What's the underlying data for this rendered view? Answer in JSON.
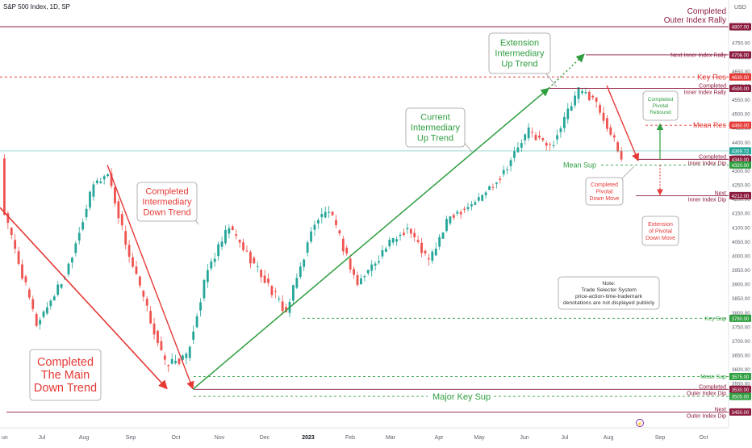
{
  "header": {
    "symbol_title": "S&P 500 Index, 1D, SP",
    "currency": "USD"
  },
  "colors": {
    "up": "#26a69a",
    "down": "#ef5350",
    "red": "#e53935",
    "green": "#2e9e3f",
    "maroon": "#8b1a3c",
    "gray_line": "#9e9e9e",
    "teal_price": "#26a69a"
  },
  "chart_data": {
    "type": "candlestick",
    "title": "S&P 500 Index, 1D, SP",
    "ylim": [
      3400,
      4850
    ],
    "y_ticks": [
      3450,
      3500,
      3550,
      3600,
      3650,
      3700,
      3750,
      3800,
      3850,
      3900,
      3950,
      4000,
      4050,
      4100,
      4150,
      4200,
      4250,
      4300,
      4350,
      4400,
      4450,
      4500,
      4550,
      4600,
      4650,
      4700,
      4750,
      4800
    ],
    "x_labels": [
      "un",
      "Jul",
      "Aug",
      "Sep",
      "Oct",
      "Nov",
      "Dec",
      "2023",
      "Feb",
      "Mar",
      "Apr",
      "May",
      "Jun",
      "Jul",
      "Aug",
      "Sep",
      "Oct"
    ],
    "x_label_bold": "2023",
    "trend_path": [
      [
        1,
        4150
      ],
      [
        10,
        3760
      ],
      [
        18,
        3930
      ],
      [
        26,
        4250
      ],
      [
        30,
        4290
      ],
      [
        36,
        4000
      ],
      [
        46,
        3620
      ],
      [
        52,
        3640
      ],
      [
        58,
        3950
      ],
      [
        64,
        4100
      ],
      [
        70,
        3990
      ],
      [
        80,
        3800
      ],
      [
        88,
        4120
      ],
      [
        92,
        4160
      ],
      [
        100,
        3900
      ],
      [
        108,
        4030
      ],
      [
        114,
        4100
      ],
      [
        120,
        3980
      ],
      [
        126,
        4140
      ],
      [
        134,
        4200
      ],
      [
        140,
        4280
      ],
      [
        148,
        4440
      ],
      [
        154,
        4380
      ],
      [
        162,
        4580
      ],
      [
        166,
        4560
      ],
      [
        170,
        4460
      ],
      [
        174,
        4340
      ]
    ],
    "levels": [
      {
        "price": 4807,
        "label_box": "4807.00",
        "note": "Completed\nOuter Index Rally",
        "color": "#8b1a3c",
        "style": "solid"
      },
      {
        "price": 4708,
        "label_box": "4708.00",
        "note": "Next Inner Index Rally",
        "color": "#8b1a3c",
        "style": "solid"
      },
      {
        "price": 4630,
        "label_box": "4630.00",
        "note": "Key Res",
        "color": "#e53935",
        "style": "dash"
      },
      {
        "price": 4590,
        "label_box": "4590.00",
        "note": "Completed\nInner Index Rally",
        "color": "#8b1a3c",
        "style": "solid"
      },
      {
        "price": 4460,
        "label_box": "4460.00",
        "note": "Mean Res",
        "color": "#e53935",
        "style": "dash"
      },
      {
        "price": 4369.72,
        "label_box": "4369.72",
        "note": "",
        "color": "#26a69a",
        "style": "price"
      },
      {
        "price": 4340,
        "label_box": "4340.00",
        "note": "Completed\nInner Index Dip",
        "color": "#8b1a3c",
        "style": "solid"
      },
      {
        "price": 4320,
        "label_box": "4320.00",
        "note": "Mean Sup",
        "color": "#2e9e3f",
        "style": "dash"
      },
      {
        "price": 4212,
        "label_box": "4212.00",
        "note": "Next\nInner Index Dip",
        "color": "#8b1a3c",
        "style": "solid"
      },
      {
        "price": 3780,
        "label_box": "3780.00",
        "note": "Key Sup",
        "color": "#2e9e3f",
        "style": "dash"
      },
      {
        "price": 3575,
        "label_box": "3575.00",
        "note": "Mean Sup",
        "color": "#2e9e3f",
        "style": "dash"
      },
      {
        "price": 3530,
        "label_box": "3530.00",
        "note": "Completed\nOuter Index Dip",
        "color": "#8b1a3c",
        "style": "solid"
      },
      {
        "price": 3505,
        "label_box": "3505.00",
        "note": "Major Key Sup",
        "color": "#2e9e3f",
        "style": "dash"
      },
      {
        "price": 3450,
        "label_box": "3450.00",
        "note": "Next\nOuter Index Dip",
        "color": "#8b1a3c",
        "style": "solid"
      }
    ],
    "annotations": {
      "main_down": "Completed\nThe Main\nDown Trend",
      "intermediary_down": "Completed\nIntermediary\nDown Trend",
      "current_up": "Current\nIntermediary\nUp Trend",
      "extension_up": "Extension\nIntermediary\nUp Trend",
      "pivotal_rebound": "Completed\nPivotal\nRebound",
      "pivotal_down": "Completed\nPivotal\nDown Move",
      "extension_pivotal_down": "Extension\nof Pivotal\nDown Move",
      "mean_sup_mid": "Mean Sup",
      "major_key_sup": "Major Key Sup",
      "note": "Note:\nTrade Selecter System\nprice-action-time-trademark\ndenotations are not displayed publicly"
    }
  }
}
